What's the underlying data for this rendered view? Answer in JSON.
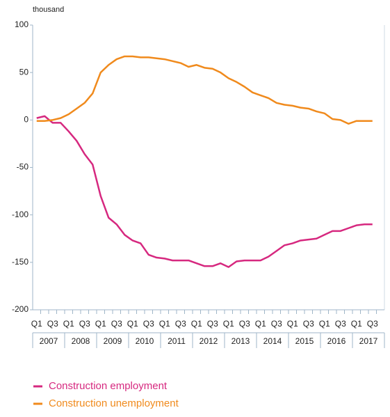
{
  "chart_data": {
    "type": "line",
    "y_unit": "thousand",
    "categories": [
      "Q1",
      null,
      "Q3",
      null,
      "Q1",
      null,
      "Q3",
      null,
      "Q1",
      null,
      "Q3",
      null,
      "Q1",
      null,
      "Q3",
      null,
      "Q1",
      null,
      "Q3",
      null,
      "Q1",
      null,
      "Q3",
      null,
      "Q1",
      null,
      "Q3",
      null,
      "Q1",
      null,
      "Q3",
      null,
      "Q1",
      null,
      "Q3",
      null,
      "Q1",
      null,
      "Q3",
      null,
      "Q1",
      null,
      "Q3"
    ],
    "years": [
      "2007",
      "2008",
      "2009",
      "2010",
      "2011",
      "2012",
      "2013",
      "2014",
      "2015",
      "2016",
      "2017"
    ],
    "series": [
      {
        "name": "Construction employment",
        "color": "#d6287f",
        "values": [
          2,
          4,
          -3,
          -3,
          -12,
          -22,
          -36,
          -47,
          -80,
          -103,
          -110,
          -121,
          -127,
          -130,
          -142,
          -145,
          -146,
          -148,
          -148,
          -148,
          -151,
          -154,
          -154,
          -151,
          -155,
          -149,
          -148,
          -148,
          -148,
          -144,
          -138,
          -132,
          -130,
          -127,
          -126,
          -125,
          -121,
          -117,
          -117,
          -114,
          -111,
          -110,
          -110
        ]
      },
      {
        "name": "Construction unemployment",
        "color": "#f08a1c",
        "values": [
          -1,
          -1,
          0,
          2,
          6,
          12,
          18,
          28,
          50,
          58,
          64,
          67,
          67,
          66,
          66,
          65,
          64,
          62,
          60,
          56,
          58,
          55,
          54,
          50,
          44,
          40,
          35,
          29,
          26,
          23,
          18,
          16,
          15,
          13,
          12,
          9,
          7,
          1,
          0,
          -4,
          -1,
          -1,
          -1
        ]
      }
    ],
    "ylim": [
      -200,
      100
    ],
    "yticks": [
      -200,
      -150,
      -100,
      -50,
      0,
      50,
      100
    ],
    "grid": false
  }
}
